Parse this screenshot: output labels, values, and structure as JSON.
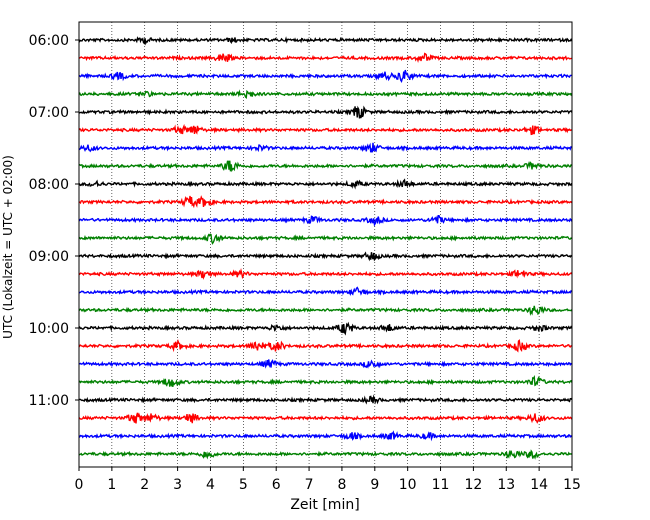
{
  "chart_data": {
    "type": "line",
    "title": "",
    "xlabel": "Zeit  [min]",
    "ylabel": "UTC (Lokalzeit = UTC + 02:00)",
    "xlim": [
      0,
      15
    ],
    "x_ticks": [
      "0",
      "1",
      "2",
      "3",
      "4",
      "5",
      "6",
      "7",
      "8",
      "9",
      "10",
      "11",
      "12",
      "13",
      "14",
      "15"
    ],
    "y_ticks": [
      "06:00",
      "07:00",
      "08:00",
      "09:00",
      "10:00",
      "11:00"
    ],
    "grid": "vertical dotted",
    "trace_interval_min": 15,
    "colors": [
      "#000000",
      "#ff0000",
      "#0000ff",
      "#008000"
    ],
    "series": [
      {
        "start": "06:00",
        "color": "#000000",
        "events": [
          [
            2.0,
            2.5
          ],
          [
            4.7,
            2.0
          ]
        ]
      },
      {
        "start": "06:15",
        "color": "#ff0000",
        "events": [
          [
            4.4,
            5.0
          ],
          [
            10.5,
            4.0
          ]
        ]
      },
      {
        "start": "06:30",
        "color": "#0000ff",
        "events": [
          [
            1.2,
            3.5
          ],
          [
            9.3,
            4.0
          ],
          [
            9.9,
            6.0
          ]
        ]
      },
      {
        "start": "06:45",
        "color": "#008000",
        "events": [
          [
            2.0,
            2.5
          ],
          [
            5.1,
            4.0
          ]
        ]
      },
      {
        "start": "07:00",
        "color": "#000000",
        "events": [
          [
            8.5,
            7.0
          ]
        ]
      },
      {
        "start": "07:15",
        "color": "#ff0000",
        "events": [
          [
            3.1,
            4.0
          ],
          [
            3.5,
            5.0
          ],
          [
            13.8,
            4.0
          ]
        ]
      },
      {
        "start": "07:30",
        "color": "#0000ff",
        "events": [
          [
            0.3,
            3.0
          ],
          [
            5.5,
            2.5
          ],
          [
            8.9,
            5.0
          ]
        ]
      },
      {
        "start": "07:45",
        "color": "#008000",
        "events": [
          [
            4.6,
            6.0
          ],
          [
            13.8,
            3.0
          ]
        ]
      },
      {
        "start": "08:00",
        "color": "#000000",
        "events": [
          [
            0.5,
            2.5
          ],
          [
            8.4,
            3.0
          ],
          [
            9.9,
            3.5
          ]
        ]
      },
      {
        "start": "08:15",
        "color": "#ff0000",
        "events": [
          [
            3.4,
            5.5
          ],
          [
            3.8,
            5.0
          ]
        ]
      },
      {
        "start": "08:30",
        "color": "#0000ff",
        "events": [
          [
            7.1,
            3.5
          ],
          [
            9.0,
            4.0
          ],
          [
            10.9,
            4.0
          ]
        ]
      },
      {
        "start": "08:45",
        "color": "#008000",
        "events": [
          [
            4.1,
            5.0
          ]
        ]
      },
      {
        "start": "09:00",
        "color": "#000000",
        "events": [
          [
            8.9,
            4.0
          ]
        ]
      },
      {
        "start": "09:15",
        "color": "#ff0000",
        "events": [
          [
            3.8,
            4.0
          ],
          [
            4.9,
            3.0
          ],
          [
            13.4,
            4.0
          ]
        ]
      },
      {
        "start": "09:30",
        "color": "#0000ff",
        "events": [
          [
            8.5,
            4.0
          ]
        ]
      },
      {
        "start": "09:45",
        "color": "#008000",
        "events": [
          [
            13.9,
            5.0
          ]
        ]
      },
      {
        "start": "10:00",
        "color": "#000000",
        "events": [
          [
            6.0,
            3.0
          ],
          [
            8.1,
            6.0
          ],
          [
            9.4,
            3.5
          ],
          [
            14.0,
            3.0
          ]
        ]
      },
      {
        "start": "10:15",
        "color": "#ff0000",
        "events": [
          [
            3.0,
            4.0
          ],
          [
            5.4,
            5.5
          ],
          [
            6.0,
            5.0
          ],
          [
            13.4,
            5.0
          ]
        ]
      },
      {
        "start": "10:30",
        "color": "#0000ff",
        "events": [
          [
            5.8,
            4.0
          ],
          [
            8.9,
            4.0
          ]
        ]
      },
      {
        "start": "10:45",
        "color": "#008000",
        "events": [
          [
            2.8,
            5.0
          ],
          [
            13.9,
            5.0
          ]
        ]
      },
      {
        "start": "11:00",
        "color": "#000000",
        "events": [
          [
            8.9,
            3.0
          ]
        ]
      },
      {
        "start": "11:15",
        "color": "#ff0000",
        "events": [
          [
            1.7,
            5.5
          ],
          [
            2.2,
            4.0
          ],
          [
            3.4,
            5.0
          ],
          [
            13.9,
            4.5
          ]
        ]
      },
      {
        "start": "11:30",
        "color": "#0000ff",
        "events": [
          [
            8.3,
            3.5
          ],
          [
            9.5,
            3.5
          ],
          [
            10.6,
            3.0
          ]
        ]
      },
      {
        "start": "11:45",
        "color": "#008000",
        "events": [
          [
            3.9,
            4.0
          ],
          [
            13.2,
            4.0
          ],
          [
            13.8,
            4.0
          ]
        ]
      }
    ]
  }
}
